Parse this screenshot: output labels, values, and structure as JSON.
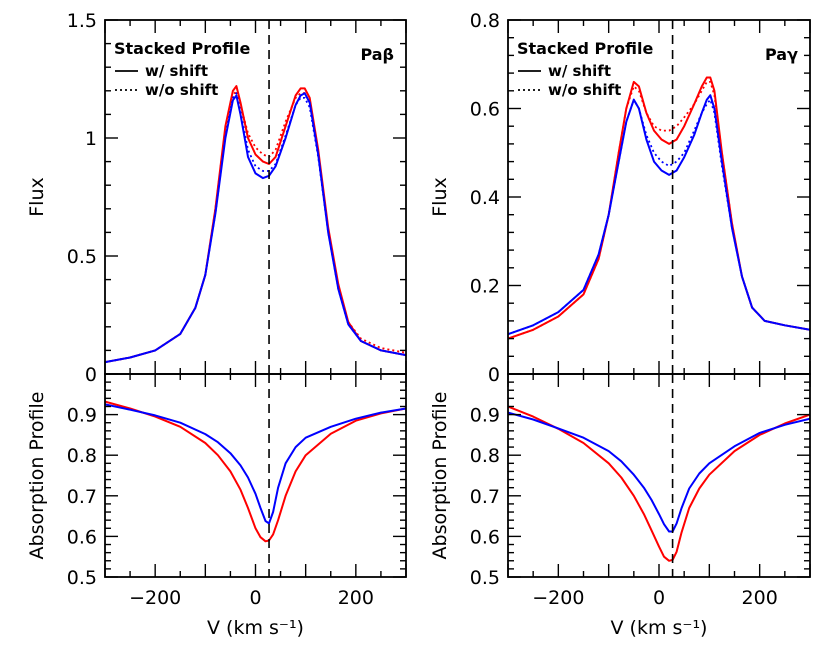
{
  "chart_data": [
    {
      "type": "line",
      "panel": "top-left",
      "title": "",
      "xlabel": "",
      "ylabel": "Flux",
      "annotations": [
        "Stacked Profile",
        "Paβ"
      ],
      "legend": [
        {
          "label": "w/ shift",
          "style": "solid"
        },
        {
          "label": "w/o shift",
          "style": "dotted"
        }
      ],
      "legend_placement": "top-left",
      "xlim": [
        -300,
        300
      ],
      "ylim": [
        0,
        1.5
      ],
      "yticks": [
        0,
        0.5,
        1,
        1.5
      ],
      "yticklabels": [
        "0",
        "0.5",
        "1",
        "1.5"
      ],
      "vline_x": 27,
      "series": [
        {
          "color": "#ff0000",
          "style": "solid",
          "x": [
            -300,
            -250,
            -200,
            -150,
            -120,
            -100,
            -80,
            -60,
            -45,
            -38,
            -30,
            -15,
            0,
            15,
            27,
            40,
            60,
            80,
            90,
            98,
            108,
            125,
            145,
            165,
            185,
            210,
            250,
            300
          ],
          "y": [
            0.05,
            0.07,
            0.1,
            0.17,
            0.28,
            0.42,
            0.7,
            1.05,
            1.2,
            1.22,
            1.15,
            1.0,
            0.93,
            0.9,
            0.89,
            0.92,
            1.05,
            1.18,
            1.21,
            1.21,
            1.17,
            0.95,
            0.62,
            0.38,
            0.22,
            0.14,
            0.1,
            0.08
          ]
        },
        {
          "color": "#ff0000",
          "style": "dotted",
          "x": [
            -300,
            -250,
            -200,
            -150,
            -120,
            -100,
            -80,
            -60,
            -45,
            -38,
            -30,
            -15,
            0,
            15,
            27,
            40,
            60,
            80,
            90,
            98,
            108,
            125,
            145,
            165,
            185,
            210,
            250,
            300
          ],
          "y": [
            0.05,
            0.07,
            0.1,
            0.17,
            0.28,
            0.42,
            0.7,
            1.04,
            1.18,
            1.2,
            1.14,
            1.02,
            0.96,
            0.93,
            0.92,
            0.95,
            1.07,
            1.17,
            1.19,
            1.19,
            1.15,
            0.94,
            0.61,
            0.37,
            0.22,
            0.15,
            0.11,
            0.09
          ]
        },
        {
          "color": "#0000ff",
          "style": "solid",
          "x": [
            -300,
            -250,
            -200,
            -150,
            -120,
            -100,
            -80,
            -60,
            -45,
            -38,
            -30,
            -15,
            0,
            15,
            27,
            40,
            60,
            80,
            90,
            98,
            108,
            125,
            145,
            165,
            185,
            210,
            250,
            300
          ],
          "y": [
            0.05,
            0.07,
            0.1,
            0.17,
            0.28,
            0.42,
            0.68,
            1.0,
            1.16,
            1.18,
            1.1,
            0.92,
            0.85,
            0.83,
            0.84,
            0.88,
            1.0,
            1.14,
            1.18,
            1.19,
            1.15,
            0.93,
            0.6,
            0.36,
            0.21,
            0.14,
            0.1,
            0.08
          ]
        },
        {
          "color": "#0000ff",
          "style": "dotted",
          "x": [
            -300,
            -250,
            -200,
            -150,
            -120,
            -100,
            -80,
            -60,
            -45,
            -38,
            -30,
            -15,
            0,
            15,
            27,
            40,
            60,
            80,
            90,
            98,
            108,
            125,
            145,
            165,
            185,
            210,
            250,
            300
          ],
          "y": [
            0.05,
            0.07,
            0.1,
            0.17,
            0.28,
            0.42,
            0.68,
            1.01,
            1.17,
            1.19,
            1.11,
            0.95,
            0.88,
            0.86,
            0.86,
            0.89,
            1.01,
            1.14,
            1.17,
            1.17,
            1.13,
            0.92,
            0.6,
            0.36,
            0.21,
            0.14,
            0.1,
            0.08
          ]
        }
      ]
    },
    {
      "type": "line",
      "panel": "bottom-left",
      "title": "",
      "xlabel": "V (km s⁻¹)",
      "ylabel": "Absorption Profile",
      "xlim": [
        -300,
        300
      ],
      "xticks": [
        -200,
        0,
        200
      ],
      "xticklabels": [
        "−200",
        "0",
        "200"
      ],
      "ylim": [
        0.5,
        1.0
      ],
      "yticks": [
        0.5,
        0.6,
        0.7,
        0.8,
        0.9
      ],
      "yticklabels": [
        "0.5",
        "0.6",
        "0.7",
        "0.8",
        "0.9"
      ],
      "vline_x": 27,
      "series": [
        {
          "color": "#ff0000",
          "style": "solid",
          "x": [
            -300,
            -250,
            -200,
            -150,
            -100,
            -75,
            -50,
            -30,
            -15,
            0,
            10,
            20,
            27,
            35,
            45,
            60,
            80,
            100,
            150,
            200,
            250,
            300
          ],
          "y": [
            0.932,
            0.915,
            0.895,
            0.87,
            0.83,
            0.8,
            0.76,
            0.715,
            0.67,
            0.62,
            0.598,
            0.588,
            0.59,
            0.605,
            0.64,
            0.7,
            0.76,
            0.8,
            0.853,
            0.885,
            0.903,
            0.915
          ]
        },
        {
          "color": "#0000ff",
          "style": "solid",
          "x": [
            -300,
            -250,
            -200,
            -150,
            -100,
            -75,
            -50,
            -30,
            -15,
            0,
            10,
            20,
            27,
            35,
            45,
            60,
            80,
            100,
            150,
            200,
            250,
            300
          ],
          "y": [
            0.925,
            0.912,
            0.898,
            0.88,
            0.852,
            0.832,
            0.805,
            0.775,
            0.745,
            0.705,
            0.67,
            0.638,
            0.632,
            0.66,
            0.72,
            0.78,
            0.82,
            0.843,
            0.87,
            0.89,
            0.905,
            0.915
          ]
        }
      ]
    },
    {
      "type": "line",
      "panel": "top-right",
      "title": "",
      "xlabel": "",
      "ylabel": "Flux",
      "annotations": [
        "Stacked Profile",
        "Paγ"
      ],
      "legend": [
        {
          "label": "w/ shift",
          "style": "solid"
        },
        {
          "label": "w/o shift",
          "style": "dotted"
        }
      ],
      "legend_placement": "top-left",
      "xlim": [
        -300,
        300
      ],
      "ylim": [
        0,
        0.8
      ],
      "yticks": [
        0,
        0.2,
        0.4,
        0.6,
        0.8
      ],
      "yticklabels": [
        "0",
        "0.2",
        "0.4",
        "0.6",
        "0.8"
      ],
      "vline_x": 27,
      "series": [
        {
          "color": "#ff0000",
          "style": "solid",
          "x": [
            -300,
            -250,
            -200,
            -150,
            -120,
            -100,
            -80,
            -65,
            -50,
            -40,
            -25,
            -10,
            5,
            20,
            35,
            50,
            70,
            85,
            95,
            102,
            110,
            125,
            145,
            165,
            185,
            210,
            250,
            300
          ],
          "y": [
            0.08,
            0.1,
            0.13,
            0.18,
            0.26,
            0.36,
            0.5,
            0.6,
            0.66,
            0.65,
            0.59,
            0.55,
            0.53,
            0.52,
            0.53,
            0.56,
            0.61,
            0.65,
            0.67,
            0.67,
            0.64,
            0.5,
            0.34,
            0.22,
            0.15,
            0.12,
            0.11,
            0.1
          ]
        },
        {
          "color": "#ff0000",
          "style": "dotted",
          "x": [
            -300,
            -250,
            -200,
            -150,
            -120,
            -100,
            -80,
            -65,
            -50,
            -40,
            -25,
            -10,
            5,
            20,
            35,
            50,
            70,
            85,
            95,
            102,
            110,
            125,
            145,
            165,
            185,
            210,
            250,
            300
          ],
          "y": [
            0.08,
            0.1,
            0.13,
            0.18,
            0.26,
            0.36,
            0.5,
            0.6,
            0.65,
            0.64,
            0.59,
            0.56,
            0.55,
            0.55,
            0.56,
            0.58,
            0.61,
            0.64,
            0.66,
            0.66,
            0.63,
            0.5,
            0.34,
            0.22,
            0.15,
            0.12,
            0.11,
            0.1
          ]
        },
        {
          "color": "#0000ff",
          "style": "solid",
          "x": [
            -300,
            -250,
            -200,
            -150,
            -120,
            -100,
            -80,
            -65,
            -50,
            -40,
            -25,
            -10,
            5,
            20,
            35,
            50,
            70,
            85,
            95,
            102,
            110,
            125,
            145,
            165,
            185,
            210,
            250,
            300
          ],
          "y": [
            0.09,
            0.11,
            0.14,
            0.19,
            0.27,
            0.36,
            0.48,
            0.57,
            0.62,
            0.6,
            0.53,
            0.48,
            0.46,
            0.45,
            0.46,
            0.49,
            0.54,
            0.59,
            0.62,
            0.63,
            0.6,
            0.48,
            0.33,
            0.22,
            0.15,
            0.12,
            0.11,
            0.1
          ]
        },
        {
          "color": "#0000ff",
          "style": "dotted",
          "x": [
            -300,
            -250,
            -200,
            -150,
            -120,
            -100,
            -80,
            -65,
            -50,
            -40,
            -25,
            -10,
            5,
            20,
            35,
            50,
            70,
            85,
            95,
            102,
            110,
            125,
            145,
            165,
            185,
            210,
            250,
            300
          ],
          "y": [
            0.09,
            0.11,
            0.14,
            0.19,
            0.27,
            0.36,
            0.48,
            0.57,
            0.62,
            0.6,
            0.54,
            0.5,
            0.48,
            0.47,
            0.48,
            0.5,
            0.55,
            0.59,
            0.61,
            0.62,
            0.59,
            0.47,
            0.33,
            0.22,
            0.15,
            0.12,
            0.11,
            0.1
          ]
        }
      ]
    },
    {
      "type": "line",
      "panel": "bottom-right",
      "title": "",
      "xlabel": "V (km s⁻¹)",
      "ylabel": "Absorption Profile",
      "xlim": [
        -300,
        300
      ],
      "xticks": [
        -200,
        0,
        200
      ],
      "xticklabels": [
        "−200",
        "0",
        "200"
      ],
      "ylim": [
        0.5,
        1.0
      ],
      "yticks": [
        0.5,
        0.6,
        0.7,
        0.8,
        0.9
      ],
      "yticklabels": [
        "0.5",
        "0.6",
        "0.7",
        "0.8",
        "0.9"
      ],
      "vline_x": 27,
      "series": [
        {
          "color": "#ff0000",
          "style": "solid",
          "x": [
            -300,
            -250,
            -200,
            -150,
            -100,
            -75,
            -50,
            -30,
            -15,
            0,
            10,
            20,
            27,
            35,
            45,
            60,
            80,
            100,
            150,
            200,
            250,
            300
          ],
          "y": [
            0.92,
            0.895,
            0.865,
            0.83,
            0.78,
            0.745,
            0.7,
            0.655,
            0.615,
            0.575,
            0.55,
            0.54,
            0.542,
            0.562,
            0.61,
            0.67,
            0.718,
            0.752,
            0.81,
            0.85,
            0.878,
            0.9
          ]
        },
        {
          "color": "#0000ff",
          "style": "solid",
          "x": [
            -300,
            -250,
            -200,
            -150,
            -100,
            -75,
            -50,
            -30,
            -15,
            0,
            10,
            20,
            27,
            35,
            45,
            60,
            80,
            100,
            150,
            200,
            250,
            300
          ],
          "y": [
            0.905,
            0.888,
            0.866,
            0.843,
            0.81,
            0.785,
            0.752,
            0.72,
            0.69,
            0.655,
            0.63,
            0.612,
            0.612,
            0.632,
            0.67,
            0.718,
            0.755,
            0.78,
            0.822,
            0.855,
            0.875,
            0.89
          ]
        }
      ]
    }
  ]
}
